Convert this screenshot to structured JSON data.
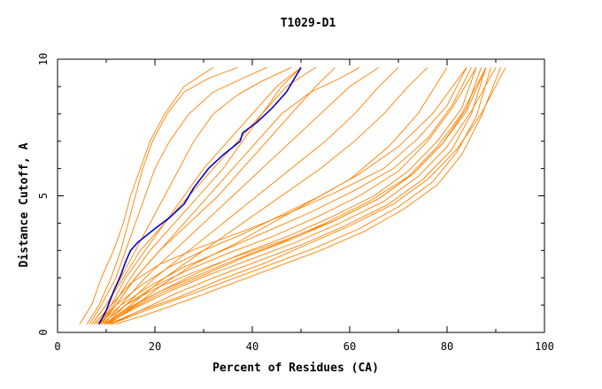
{
  "chart_data": {
    "type": "line",
    "title": "T1029-D1",
    "xlabel": "Percent of Residues (CA)",
    "ylabel": "Distance Cutoff, A",
    "xlim": [
      0,
      100
    ],
    "ylim": [
      0,
      10
    ],
    "x_ticks": [
      "0",
      "20",
      "40",
      "60",
      "80",
      "100"
    ],
    "y_ticks": [
      "0",
      "5",
      "10"
    ],
    "grid": false,
    "legend": "none",
    "colors": {
      "highlight": "#0000cc",
      "others": "#ff8000",
      "axes": "#000000"
    },
    "highlight": {
      "x": [
        8.5,
        10,
        11.5,
        13,
        14,
        15,
        16.5,
        20,
        23,
        26,
        28,
        31,
        34,
        37.5,
        38,
        41,
        44,
        47,
        50
      ],
      "y": [
        0.3,
        0.8,
        1.5,
        2.1,
        2.6,
        3.0,
        3.3,
        3.8,
        4.2,
        4.7,
        5.3,
        6.0,
        6.5,
        7.0,
        7.3,
        7.7,
        8.2,
        8.8,
        9.7
      ]
    },
    "series": [
      {
        "x": [
          4.5,
          7,
          9,
          11.5,
          13.5,
          15,
          17,
          19,
          22,
          26,
          32
        ],
        "y": [
          0.3,
          1.0,
          2.0,
          3.0,
          4.0,
          5.0,
          6.0,
          7.0,
          8.0,
          9.0,
          9.7
        ]
      },
      {
        "x": [
          6,
          8.5,
          11,
          13,
          14.5,
          16,
          17.5,
          19.5,
          22.5,
          26,
          31,
          37
        ],
        "y": [
          0.3,
          1.0,
          2.0,
          3.0,
          4.0,
          5.0,
          6.0,
          7.0,
          8.0,
          8.8,
          9.3,
          9.7
        ]
      },
      {
        "x": [
          6.5,
          9,
          12,
          14,
          16,
          18,
          20,
          23,
          27,
          32,
          38,
          43
        ],
        "y": [
          0.3,
          1.0,
          2.0,
          3.0,
          4.0,
          5.0,
          6.0,
          7.0,
          8.0,
          8.8,
          9.3,
          9.7
        ]
      },
      {
        "x": [
          7,
          10,
          13,
          16,
          19,
          22,
          25,
          28,
          32,
          37,
          42,
          48
        ],
        "y": [
          0.3,
          1.0,
          2.0,
          3.0,
          4.0,
          5.0,
          6.0,
          7.0,
          8.0,
          8.7,
          9.2,
          9.7
        ]
      },
      {
        "x": [
          7.5,
          11,
          14,
          18,
          22,
          26,
          30,
          35,
          40,
          45,
          50
        ],
        "y": [
          0.3,
          1.0,
          2.0,
          3.0,
          4.0,
          5.0,
          6.0,
          7.0,
          8.0,
          9.0,
          9.7
        ]
      },
      {
        "x": [
          8,
          11.5,
          15,
          19,
          24,
          29,
          34,
          38,
          42,
          46,
          50
        ],
        "y": [
          0.3,
          1.0,
          2.0,
          3.0,
          4.0,
          5.0,
          6.0,
          7.0,
          8.0,
          9.0,
          9.7
        ]
      },
      {
        "x": [
          8.5,
          12,
          16,
          21,
          27,
          33,
          38,
          43,
          48,
          53,
          57
        ],
        "y": [
          0.3,
          1.0,
          2.0,
          3.0,
          4.0,
          5.0,
          6.0,
          7.0,
          8.0,
          9.0,
          9.7
        ]
      },
      {
        "x": [
          7,
          10,
          13.5,
          17,
          22,
          27,
          32,
          37,
          42,
          47,
          53
        ],
        "y": [
          0.3,
          1.0,
          2.0,
          3.0,
          4.0,
          5.0,
          6.0,
          7.0,
          8.0,
          9.0,
          9.7
        ]
      },
      {
        "x": [
          9,
          12,
          16,
          21,
          26,
          31,
          36,
          41,
          46,
          52,
          58,
          62
        ],
        "y": [
          0.3,
          1.0,
          2.0,
          3.0,
          4.0,
          5.0,
          6.0,
          7.0,
          8.0,
          8.8,
          9.3,
          9.7
        ]
      },
      {
        "x": [
          9.5,
          13,
          18,
          24,
          30,
          36,
          42,
          48,
          54,
          60,
          66
        ],
        "y": [
          0.3,
          1.0,
          2.0,
          3.0,
          4.0,
          5.0,
          6.0,
          7.0,
          8.0,
          9.0,
          9.7
        ]
      },
      {
        "x": [
          10,
          14,
          20,
          27,
          34,
          41,
          48,
          55,
          61,
          66,
          70
        ],
        "y": [
          0.3,
          1.0,
          2.0,
          3.0,
          4.0,
          5.0,
          6.0,
          7.0,
          8.0,
          9.0,
          9.7
        ]
      },
      {
        "x": [
          10,
          15,
          22,
          30,
          38,
          46,
          54,
          61,
          67,
          72,
          76
        ],
        "y": [
          0.3,
          1.0,
          2.0,
          3.0,
          4.0,
          5.0,
          6.0,
          7.0,
          8.0,
          9.0,
          9.7
        ]
      },
      {
        "x": [
          10.5,
          16,
          22,
          28,
          36,
          44,
          52,
          60,
          68,
          74,
          80
        ],
        "y": [
          0.3,
          1.0,
          1.8,
          2.5,
          3.2,
          4.0,
          4.8,
          5.6,
          6.8,
          8.0,
          9.7
        ]
      },
      {
        "x": [
          8,
          12,
          17,
          23,
          30,
          38,
          46,
          54,
          62,
          70,
          77,
          84
        ],
        "y": [
          0.3,
          1.0,
          1.7,
          2.4,
          3.0,
          3.6,
          4.3,
          5.0,
          5.8,
          6.8,
          8.0,
          9.7
        ]
      },
      {
        "x": [
          9,
          14,
          20,
          27,
          35,
          44,
          53,
          62,
          70,
          76,
          81,
          86
        ],
        "y": [
          0.3,
          1.0,
          1.7,
          2.3,
          2.9,
          3.5,
          4.2,
          5.0,
          5.9,
          7.0,
          8.2,
          9.7
        ]
      },
      {
        "x": [
          9.5,
          15,
          21,
          29,
          37,
          46,
          55,
          64,
          72,
          78,
          83,
          88
        ],
        "y": [
          0.3,
          0.9,
          1.5,
          2.1,
          2.7,
          3.3,
          4.0,
          4.8,
          5.7,
          6.8,
          8.0,
          9.7
        ]
      },
      {
        "x": [
          10,
          16,
          23,
          31,
          40,
          49,
          58,
          67,
          74,
          80,
          85,
          90
        ],
        "y": [
          0.3,
          0.9,
          1.5,
          2.1,
          2.7,
          3.3,
          4.0,
          4.8,
          5.7,
          6.8,
          8.1,
          9.7
        ]
      },
      {
        "x": [
          10.5,
          17,
          25,
          33,
          42,
          51,
          60,
          69,
          76,
          82,
          87,
          92
        ],
        "y": [
          0.3,
          0.8,
          1.3,
          1.9,
          2.5,
          3.2,
          3.9,
          4.7,
          5.6,
          6.7,
          8.0,
          9.7
        ]
      },
      {
        "x": [
          11,
          18,
          26,
          35,
          44,
          53,
          62,
          70,
          77,
          82,
          86,
          89
        ],
        "y": [
          0.3,
          0.8,
          1.3,
          1.9,
          2.5,
          3.1,
          3.8,
          4.6,
          5.5,
          6.6,
          7.9,
          9.7
        ]
      },
      {
        "x": [
          9,
          14,
          20,
          28,
          37,
          47,
          57,
          66,
          73,
          79,
          84,
          87
        ],
        "y": [
          0.3,
          1.0,
          1.6,
          2.2,
          2.8,
          3.4,
          4.1,
          4.9,
          5.8,
          6.9,
          8.2,
          9.7
        ]
      },
      {
        "x": [
          8.5,
          13,
          19,
          26,
          34,
          43,
          52,
          61,
          69,
          76,
          81,
          85
        ],
        "y": [
          0.3,
          1.0,
          1.7,
          2.4,
          3.0,
          3.7,
          4.4,
          5.2,
          6.0,
          7.1,
          8.3,
          9.7
        ]
      },
      {
        "x": [
          9.5,
          14.5,
          21,
          29,
          38,
          47,
          56,
          65,
          72,
          78,
          83,
          86
        ],
        "y": [
          0.3,
          0.9,
          1.5,
          2.2,
          2.9,
          3.5,
          4.2,
          5.0,
          5.9,
          7.0,
          8.2,
          9.7
        ]
      },
      {
        "x": [
          11,
          17,
          24,
          32,
          41,
          50,
          59,
          68,
          75,
          81,
          85,
          88
        ],
        "y": [
          0.3,
          0.8,
          1.4,
          2.0,
          2.6,
          3.2,
          3.9,
          4.7,
          5.6,
          6.7,
          8.0,
          9.7
        ]
      },
      {
        "x": [
          12,
          19,
          27,
          36,
          45,
          54,
          63,
          71,
          78,
          83,
          87,
          91
        ],
        "y": [
          0.3,
          0.7,
          1.2,
          1.8,
          2.4,
          3.0,
          3.7,
          4.5,
          5.4,
          6.5,
          7.9,
          9.7
        ]
      },
      {
        "x": [
          10,
          15.5,
          22,
          30,
          39,
          48,
          57,
          66,
          73,
          79,
          84,
          88
        ],
        "y": [
          0.3,
          0.9,
          1.5,
          2.1,
          2.8,
          3.4,
          4.1,
          4.9,
          5.8,
          6.9,
          8.1,
          9.7
        ]
      },
      {
        "x": [
          7.5,
          11,
          15,
          21,
          29,
          38,
          48,
          58,
          67,
          74,
          80,
          84
        ],
        "y": [
          0.3,
          1.0,
          1.8,
          2.5,
          3.1,
          3.7,
          4.4,
          5.2,
          6.0,
          7.1,
          8.3,
          9.7
        ]
      }
    ]
  }
}
